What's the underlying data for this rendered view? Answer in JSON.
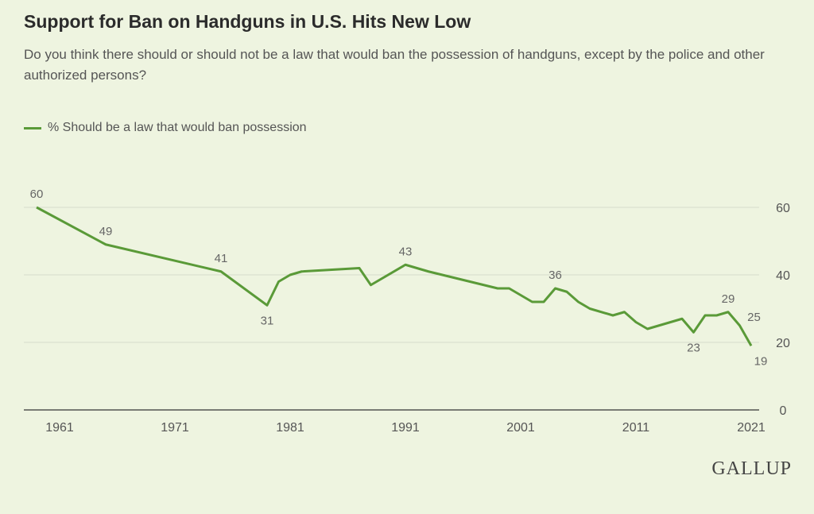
{
  "title": "Support for Ban on Handguns in U.S. Hits New Low",
  "subtitle": "Do you think there should or should not be a law that would ban the possession of handguns, except by the police and other authorized persons?",
  "logo": "GALLUP",
  "chart_data": {
    "type": "line",
    "title": "Support for Ban on Handguns in U.S. Hits New Low",
    "xlabel": "",
    "ylabel": "",
    "xlim": [
      1959,
      2021
    ],
    "ylim": [
      0,
      60
    ],
    "x_ticks": [
      "1961",
      "1971",
      "1981",
      "1991",
      "2001",
      "2011",
      "2021"
    ],
    "y_ticks": [
      "0",
      "20",
      "40",
      "60"
    ],
    "grid": true,
    "legend_position": "top-left",
    "line_color": "#5a9a38",
    "series": [
      {
        "name": "% Should be a law that would ban possession",
        "x": [
          1959,
          1965,
          1975,
          1979,
          1980,
          1981,
          1982,
          1987,
          1988,
          1991,
          1993,
          1999,
          2000,
          2002,
          2003,
          2004,
          2005,
          2006,
          2007,
          2009,
          2010,
          2011,
          2012,
          2015,
          2016,
          2017,
          2018,
          2019,
          2020,
          2021
        ],
        "values": [
          60,
          49,
          41,
          31,
          38,
          40,
          41,
          42,
          37,
          43,
          41,
          36,
          36,
          32,
          32,
          36,
          35,
          32,
          30,
          28,
          29,
          26,
          24,
          27,
          23,
          28,
          28,
          29,
          25,
          19
        ]
      }
    ],
    "data_labels": [
      {
        "x": 1959,
        "text": "60"
      },
      {
        "x": 1965,
        "text": "49"
      },
      {
        "x": 1975,
        "text": "41"
      },
      {
        "x": 1979,
        "text": "31"
      },
      {
        "x": 1991,
        "text": "43"
      },
      {
        "x": 2004,
        "text": "36"
      },
      {
        "x": 2016,
        "text": "23"
      },
      {
        "x": 2019,
        "text": "29"
      },
      {
        "x": 2020,
        "text": "25"
      },
      {
        "x": 2021,
        "text": "19"
      }
    ]
  }
}
